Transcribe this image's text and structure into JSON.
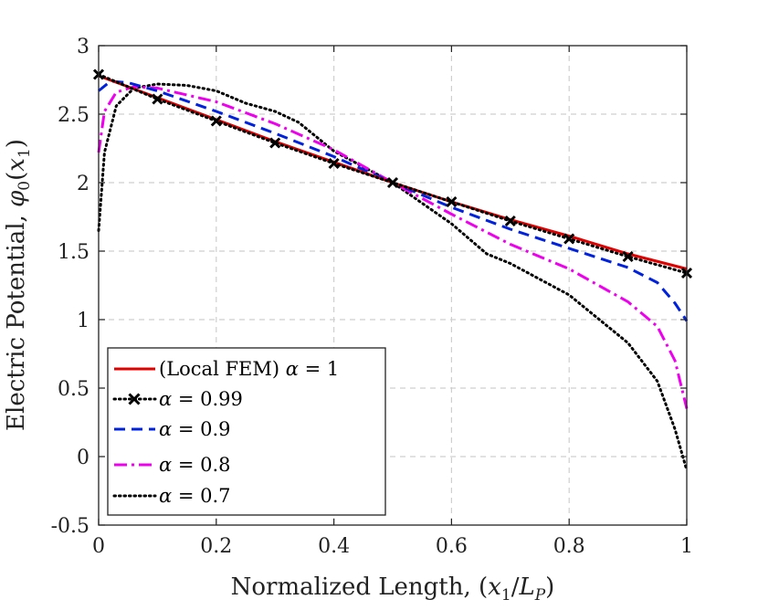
{
  "chart_data": {
    "type": "line",
    "xlabel_text": "Normalized Length, (",
    "xlabel_var": "x",
    "xlabel_sub1": "1",
    "xlabel_slash": "/",
    "xlabel_var2": "L",
    "xlabel_sub2": "P",
    "xlabel_close": ")",
    "ylabel_text": "Electric Potential, ",
    "ylabel_var": "φ",
    "ylabel_sub0": "0",
    "ylabel_open": "(",
    "ylabel_var2": "x",
    "ylabel_sub1": "1",
    "ylabel_close": ")",
    "xlim": [
      0,
      1
    ],
    "ylim": [
      -0.5,
      3
    ],
    "xticks": [
      0,
      0.2,
      0.4,
      0.6,
      0.8,
      1
    ],
    "xtick_labels": [
      "0",
      "0.2",
      "0.4",
      "0.6",
      "0.8",
      "1"
    ],
    "yticks": [
      -0.5,
      0,
      0.5,
      1,
      1.5,
      2,
      2.5,
      3
    ],
    "ytick_labels": [
      "-0.5",
      "0",
      "0.5",
      "1",
      "1.5",
      "2",
      "2.5",
      "3"
    ],
    "grid": true,
    "legend_position": "bottom-left",
    "series": [
      {
        "name_prefix": "(Local FEM) ",
        "name_var": "α",
        "name_value": " = 1",
        "color": "#e00000",
        "style": "solid",
        "x": [
          0,
          0.1,
          0.2,
          0.3,
          0.4,
          0.5,
          0.6,
          0.7,
          0.8,
          0.9,
          1.0
        ],
        "y": [
          2.78,
          2.62,
          2.46,
          2.3,
          2.15,
          2.0,
          1.86,
          1.73,
          1.61,
          1.48,
          1.37
        ]
      },
      {
        "name_prefix": "",
        "name_var": "α",
        "name_value": " = 0.99",
        "color": "#000000",
        "style": "dotted-x",
        "x": [
          0,
          0.1,
          0.2,
          0.3,
          0.4,
          0.5,
          0.6,
          0.7,
          0.8,
          0.9,
          1.0
        ],
        "y": [
          2.79,
          2.61,
          2.45,
          2.29,
          2.14,
          2.0,
          1.86,
          1.72,
          1.59,
          1.46,
          1.34
        ]
      },
      {
        "name_prefix": "",
        "name_var": "α",
        "name_value": " = 0.9",
        "color": "#0022dd",
        "style": "dashed",
        "x": [
          0,
          0.02,
          0.05,
          0.1,
          0.2,
          0.3,
          0.4,
          0.5,
          0.6,
          0.7,
          0.8,
          0.9,
          0.95,
          0.98,
          1.0
        ],
        "y": [
          2.67,
          2.74,
          2.73,
          2.67,
          2.52,
          2.36,
          2.19,
          2.0,
          1.82,
          1.66,
          1.52,
          1.38,
          1.27,
          1.12,
          0.99
        ]
      },
      {
        "name_prefix": "",
        "name_var": "α",
        "name_value": " = 0.8",
        "color": "#ee00ee",
        "style": "dashdot",
        "x": [
          0,
          0.01,
          0.03,
          0.06,
          0.1,
          0.2,
          0.3,
          0.4,
          0.5,
          0.6,
          0.7,
          0.8,
          0.9,
          0.95,
          0.98,
          1.0
        ],
        "y": [
          2.22,
          2.52,
          2.66,
          2.7,
          2.69,
          2.59,
          2.43,
          2.24,
          2.0,
          1.77,
          1.55,
          1.37,
          1.13,
          0.95,
          0.7,
          0.35
        ]
      },
      {
        "name_prefix": "",
        "name_var": "α",
        "name_value": " = 0.7",
        "color": "#000000",
        "style": "dotted",
        "x": [
          0,
          0.01,
          0.03,
          0.06,
          0.1,
          0.15,
          0.2,
          0.25,
          0.3,
          0.34,
          0.4,
          0.5,
          0.6,
          0.66,
          0.7,
          0.8,
          0.9,
          0.95,
          0.98,
          1.0
        ],
        "y": [
          1.65,
          2.22,
          2.56,
          2.69,
          2.72,
          2.71,
          2.67,
          2.58,
          2.52,
          2.44,
          2.23,
          2.0,
          1.7,
          1.48,
          1.41,
          1.18,
          0.83,
          0.55,
          0.2,
          -0.1
        ]
      }
    ]
  }
}
